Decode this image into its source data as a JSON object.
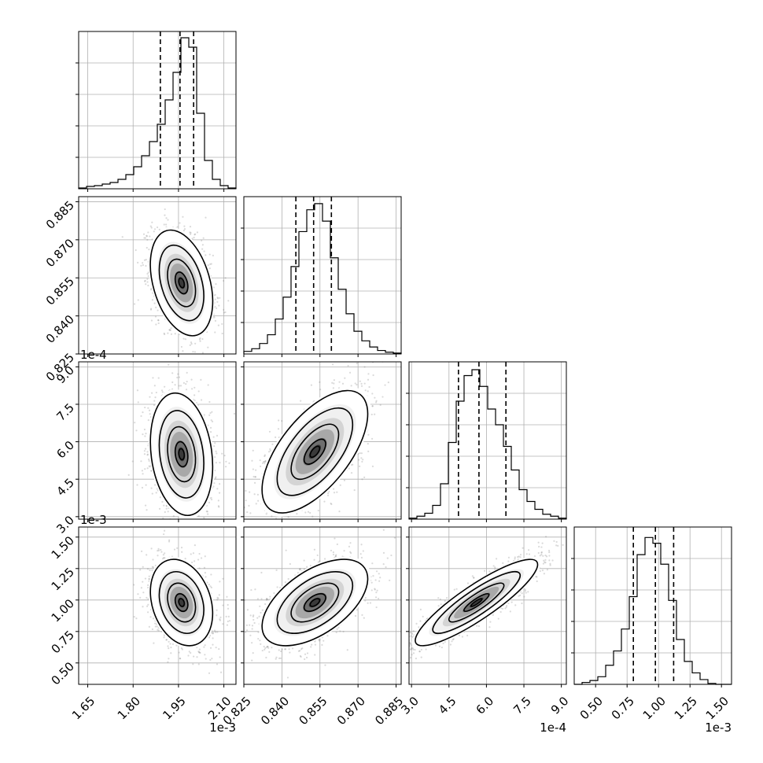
{
  "chart_data": {
    "type": "corner",
    "grid": true,
    "parameters": [
      {
        "id": "p1",
        "range": [
          1.62,
          2.14
        ],
        "ticks": [
          1.65,
          1.8,
          1.95,
          2.1
        ],
        "tick_labels": [
          "1.65",
          "1.80",
          "1.95",
          "2.10"
        ],
        "offset_label": "1e-3",
        "quantiles": [
          1.89,
          1.955,
          2.0
        ],
        "hist_edges": [
          1.62,
          1.646,
          1.672,
          1.698,
          1.724,
          1.75,
          1.776,
          1.802,
          1.828,
          1.854,
          1.88,
          1.906,
          1.932,
          1.958,
          1.984,
          2.01,
          2.036,
          2.062,
          2.088,
          2.114,
          2.14
        ],
        "hist_counts": [
          1,
          3,
          4,
          6,
          8,
          12,
          18,
          28,
          42,
          60,
          82,
          113,
          148,
          192,
          180,
          96,
          36,
          12,
          4,
          1
        ],
        "hist_max": 200
      },
      {
        "id": "p2",
        "range": [
          0.825,
          0.887
        ],
        "ticks": [
          0.825,
          0.84,
          0.855,
          0.87,
          0.885
        ],
        "tick_labels": [
          "0.825",
          "0.840",
          "0.855",
          "0.870",
          "0.885"
        ],
        "offset_label": "",
        "quantiles": [
          0.8455,
          0.8525,
          0.8595
        ],
        "hist_edges": [
          0.825,
          0.8281,
          0.8312,
          0.8343,
          0.8374,
          0.8405,
          0.8436,
          0.8467,
          0.8498,
          0.8529,
          0.856,
          0.8591,
          0.8622,
          0.8653,
          0.8684,
          0.8715,
          0.8746,
          0.8777,
          0.8808,
          0.8839,
          0.887
        ],
        "hist_counts": [
          3,
          6,
          12,
          22,
          40,
          65,
          100,
          140,
          165,
          172,
          152,
          110,
          74,
          46,
          26,
          15,
          8,
          4,
          2,
          1
        ],
        "hist_max": 180
      },
      {
        "id": "p3",
        "range": [
          2.9,
          9.2
        ],
        "ticks": [
          3.0,
          4.5,
          6.0,
          7.5,
          9.0
        ],
        "tick_labels": [
          "3.0",
          "4.5",
          "6.0",
          "7.5",
          "9.0"
        ],
        "offset_label": "1e-4",
        "quantiles": [
          4.88,
          5.7,
          6.78
        ],
        "hist_edges": [
          2.9,
          3.215,
          3.53,
          3.845,
          4.16,
          4.475,
          4.79,
          5.105,
          5.42,
          5.735,
          6.05,
          6.365,
          6.68,
          6.995,
          7.31,
          7.625,
          7.94,
          8.255,
          8.57,
          8.885,
          9.2
        ],
        "hist_counts": [
          1,
          3,
          6,
          14,
          36,
          78,
          120,
          146,
          152,
          135,
          112,
          96,
          74,
          50,
          30,
          18,
          10,
          5,
          3,
          1
        ],
        "hist_max": 160
      },
      {
        "id": "p4",
        "range": [
          0.33,
          1.58
        ],
        "ticks": [
          0.5,
          0.75,
          1.0,
          1.25,
          1.5
        ],
        "tick_labels": [
          "0.50",
          "0.75",
          "1.00",
          "1.25",
          "1.50"
        ],
        "offset_label": "1e-3",
        "quantiles": [
          0.8,
          0.975,
          1.12
        ],
        "hist_edges": [
          0.33,
          0.3925,
          0.455,
          0.5175,
          0.58,
          0.6425,
          0.705,
          0.7675,
          0.83,
          0.8925,
          0.955,
          1.0175,
          1.08,
          1.1425,
          1.205,
          1.2675,
          1.33,
          1.3925,
          1.455,
          1.5175,
          1.58
        ],
        "hist_counts": [
          0,
          2,
          4,
          8,
          20,
          35,
          58,
          92,
          136,
          154,
          148,
          126,
          88,
          47,
          24,
          12,
          5,
          1,
          0,
          0
        ],
        "hist_max": 165
      }
    ],
    "pairs": [
      {
        "x": 0,
        "y": 1,
        "center": [
          1.96,
          0.853
        ],
        "sx": 0.042,
        "sy": 0.0085,
        "rho": -0.35,
        "samples": 2000
      },
      {
        "x": 0,
        "y": 2,
        "center": [
          1.96,
          5.5
        ],
        "sx": 0.042,
        "sy": 1.0,
        "rho": -0.2,
        "samples": 2000
      },
      {
        "x": 1,
        "y": 2,
        "center": [
          0.853,
          5.6
        ],
        "sx": 0.0085,
        "sy": 1.0,
        "rho": 0.62,
        "samples": 2000
      },
      {
        "x": 0,
        "y": 3,
        "center": [
          1.96,
          0.98
        ],
        "sx": 0.042,
        "sy": 0.14,
        "rho": -0.25,
        "samples": 2000
      },
      {
        "x": 1,
        "y": 3,
        "center": [
          0.853,
          0.98
        ],
        "sx": 0.0085,
        "sy": 0.14,
        "rho": 0.55,
        "samples": 2000
      },
      {
        "x": 2,
        "y": 3,
        "center": [
          5.6,
          0.98
        ],
        "sx": 1.0,
        "sy": 0.14,
        "rho": 0.88,
        "samples": 2000
      }
    ]
  }
}
